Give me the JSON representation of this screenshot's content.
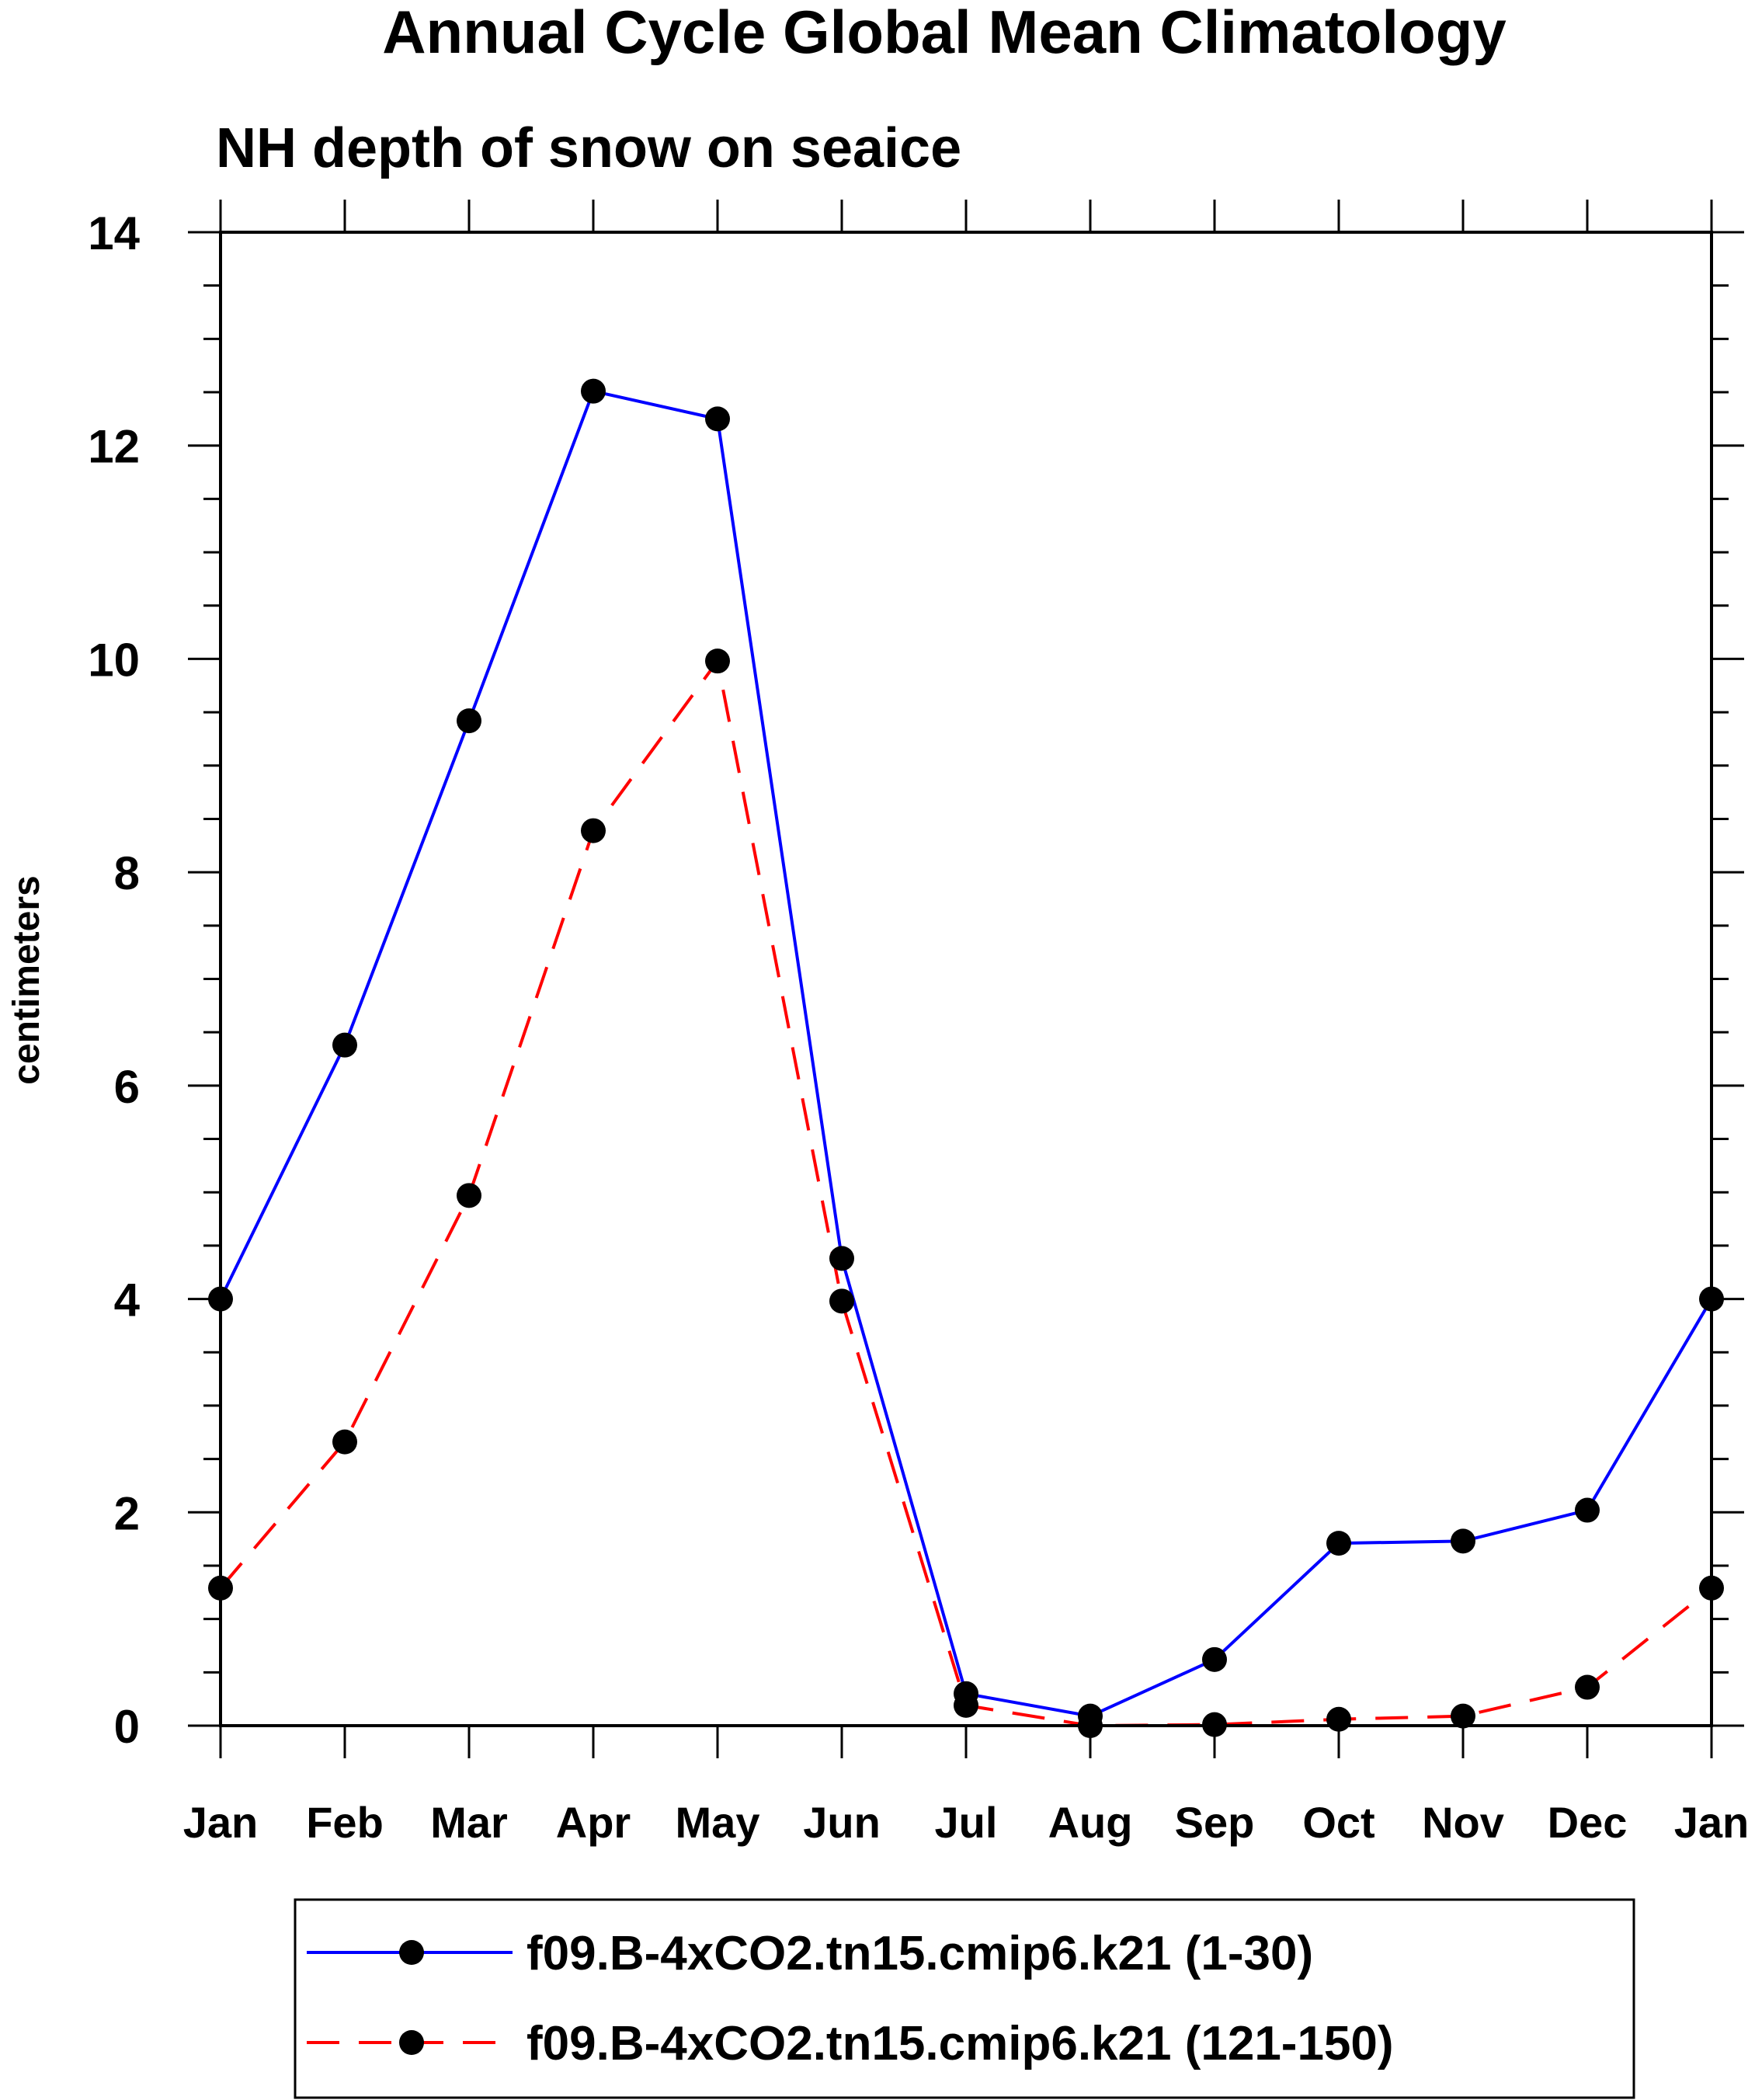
{
  "chart_data": {
    "type": "line",
    "title": "Annual Cycle Global Mean Climatology",
    "subtitle": "NH depth of snow on seaice",
    "xlabel": "",
    "ylabel": "centimeters",
    "categories": [
      "Jan",
      "Feb",
      "Mar",
      "Apr",
      "May",
      "Jun",
      "Jul",
      "Aug",
      "Sep",
      "Oct",
      "Nov",
      "Dec",
      "Jan"
    ],
    "ylim": [
      0,
      14
    ],
    "yticks": [
      "0",
      "2",
      "4",
      "6",
      "8",
      "10",
      "12",
      "14"
    ],
    "grid": false,
    "legend_position": "bottom",
    "series": [
      {
        "name": "f09.B-4xCO2.tn15.cmip6.k21 (1-30)",
        "color": "#0000ff",
        "line_style": "solid",
        "marker": "filled-circle",
        "values": [
          4.0,
          6.38,
          9.42,
          12.51,
          12.25,
          4.38,
          0.3,
          0.09,
          0.62,
          1.71,
          1.73,
          2.02,
          4.0
        ]
      },
      {
        "name": "f09.B-4xCO2.tn15.cmip6.k21 (121-150)",
        "color": "#ff0000",
        "line_style": "dashed",
        "marker": "filled-circle",
        "values": [
          1.29,
          2.66,
          4.97,
          8.39,
          9.98,
          3.98,
          0.19,
          0.0,
          0.01,
          0.06,
          0.09,
          0.36,
          1.29
        ]
      }
    ]
  }
}
